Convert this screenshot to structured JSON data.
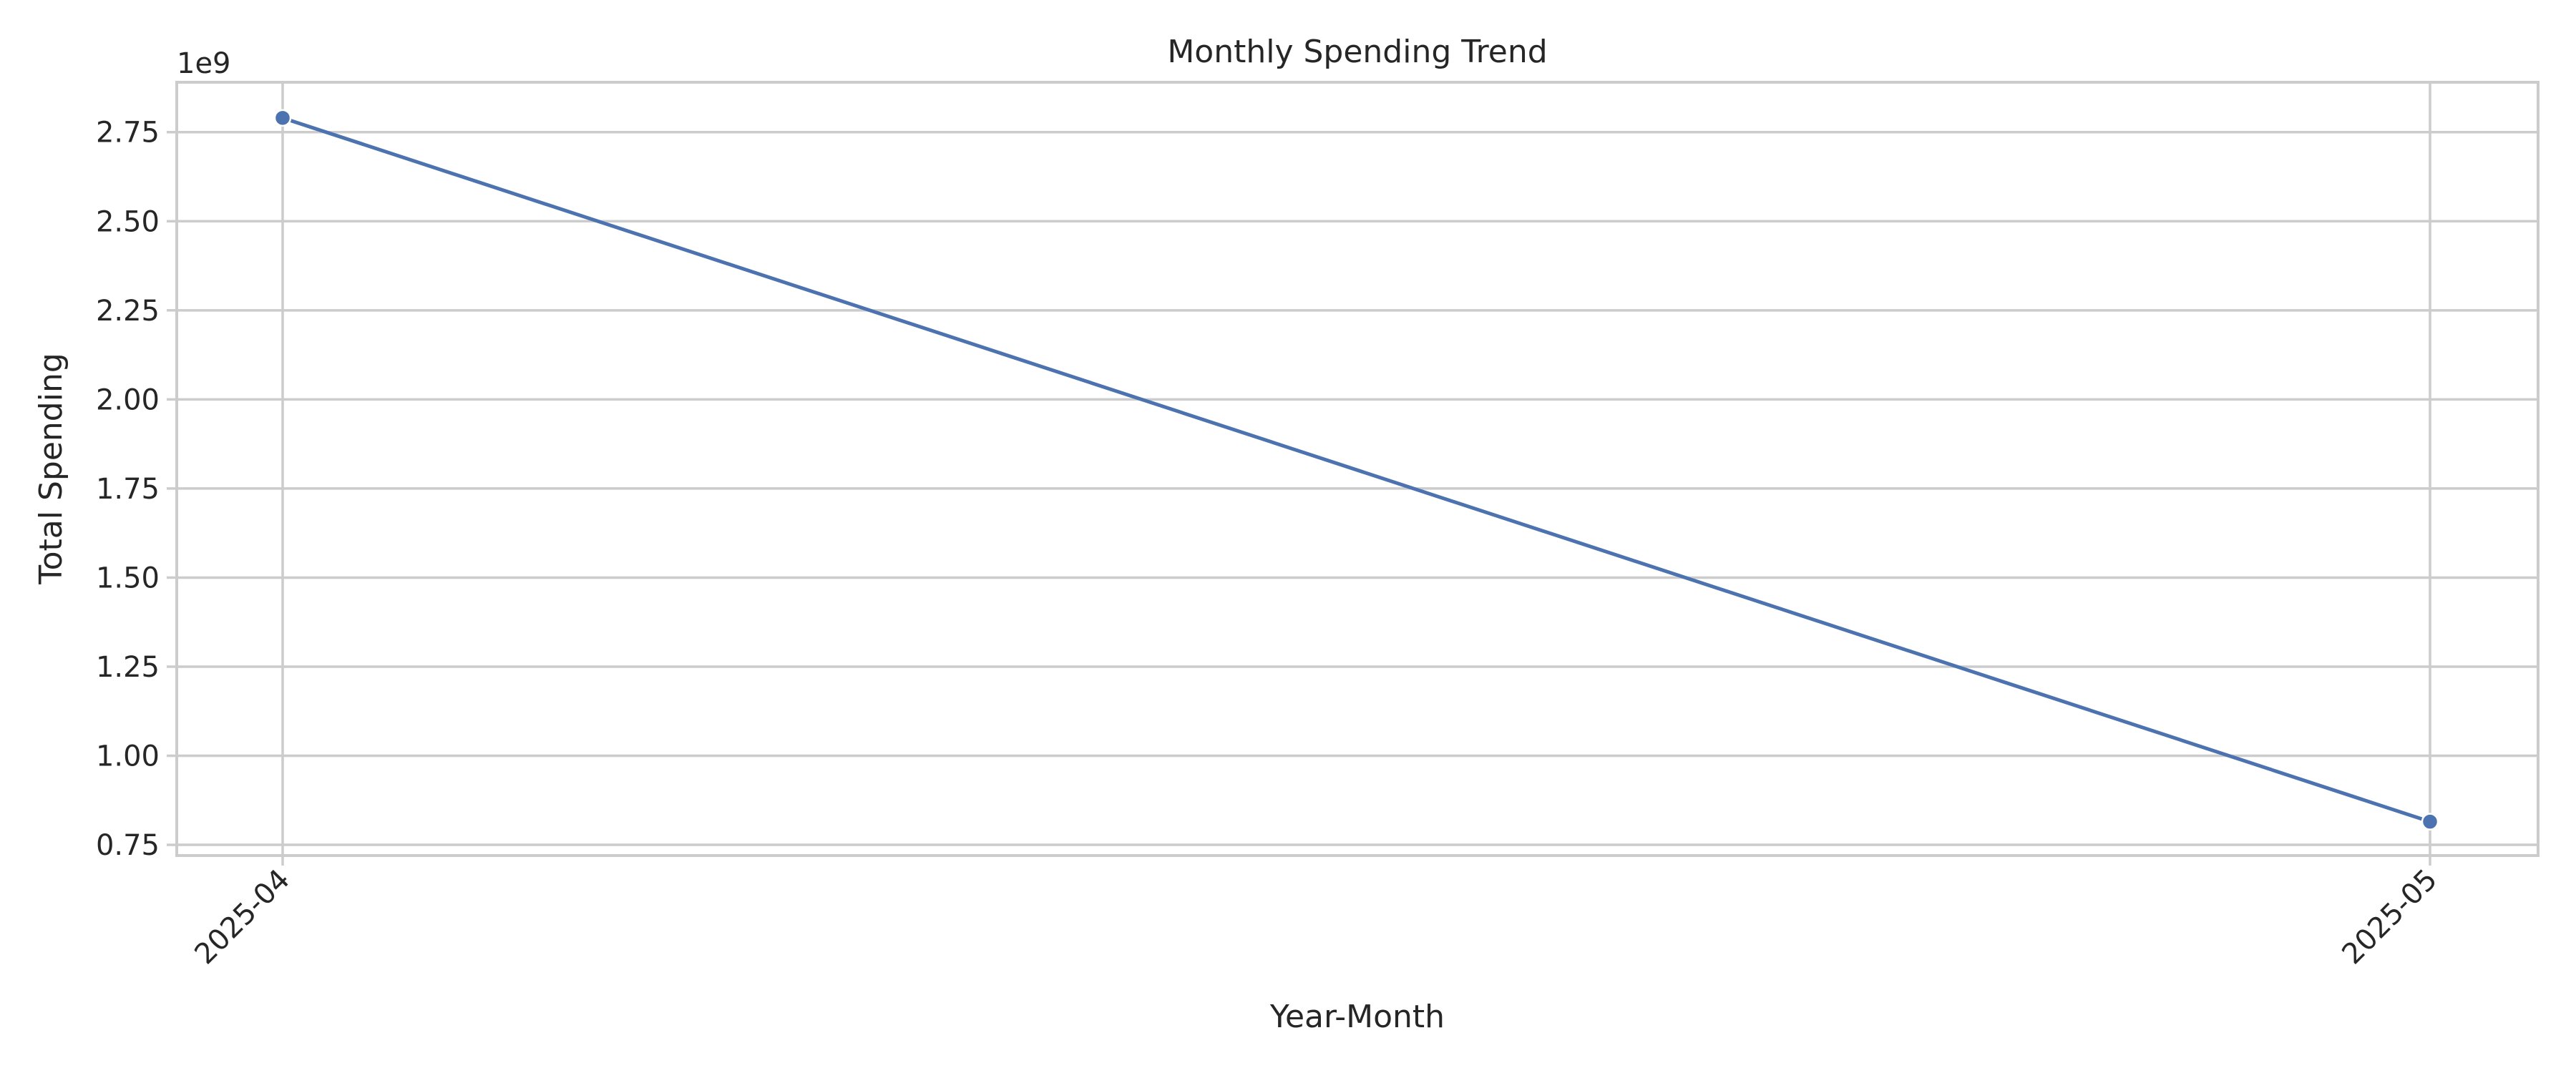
{
  "chart_data": {
    "type": "line",
    "title": "Monthly Spending Trend",
    "xlabel": "Year-Month",
    "ylabel": "Total Spending",
    "y_offset_label": "1e9",
    "categories": [
      "2025-04",
      "2025-05"
    ],
    "series": [
      {
        "values": [
          2790000000,
          815000000
        ],
        "color": "#4c72b0",
        "marker": "circle"
      }
    ],
    "ylim": [
      720000000,
      2890000000
    ],
    "y_ticks": [
      {
        "value": 750000000,
        "label": "0.75"
      },
      {
        "value": 1000000000,
        "label": "1.00"
      },
      {
        "value": 1250000000,
        "label": "1.25"
      },
      {
        "value": 1500000000,
        "label": "1.50"
      },
      {
        "value": 1750000000,
        "label": "1.75"
      },
      {
        "value": 2000000000,
        "label": "2.00"
      },
      {
        "value": 2250000000,
        "label": "2.25"
      },
      {
        "value": 2500000000,
        "label": "2.50"
      },
      {
        "value": 2750000000,
        "label": "2.75"
      }
    ],
    "x_tick_rotation": -45,
    "grid": true,
    "legend": "none"
  }
}
